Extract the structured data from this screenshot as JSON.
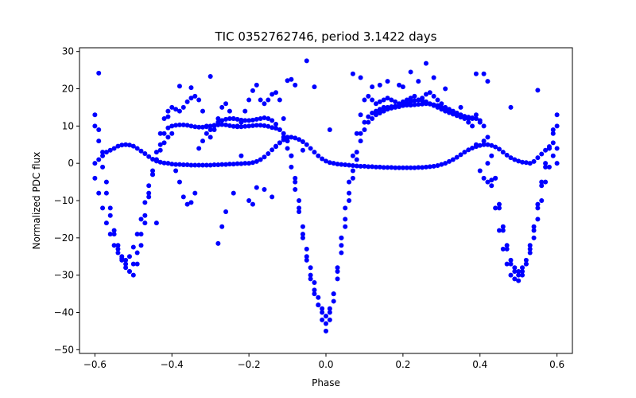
{
  "chart_data": {
    "type": "scatter",
    "title": "TIC 0352762746, period 3.1422 days",
    "xlabel": "Phase",
    "ylabel": "Normalized PDC flux",
    "xlim": [
      -0.64,
      0.64
    ],
    "ylim": [
      -51,
      31
    ],
    "xticks": [
      -0.6,
      -0.4,
      -0.2,
      0.0,
      0.2,
      0.4,
      0.6
    ],
    "xtick_labels": [
      "−0.6",
      "−0.4",
      "−0.2",
      "0.0",
      "0.2",
      "0.4",
      "0.6"
    ],
    "yticks": [
      -50,
      -40,
      -30,
      -20,
      -10,
      0,
      10,
      20,
      30
    ],
    "ytick_labels": [
      "−50",
      "−40",
      "−30",
      "−20",
      "−10",
      "0",
      "10",
      "20",
      "30"
    ],
    "grid": false,
    "legend": "none",
    "marker_color": "#0000ff",
    "series": [
      {
        "x": [
          -0.6,
          -0.59,
          -0.58,
          -0.57,
          -0.56,
          -0.55,
          -0.54,
          -0.53,
          -0.52,
          -0.51,
          -0.5,
          -0.49,
          -0.48,
          -0.47,
          -0.46,
          -0.45,
          -0.44,
          -0.43,
          -0.42,
          -0.41,
          -0.4,
          -0.39,
          -0.38,
          -0.37,
          -0.36,
          -0.35,
          -0.34,
          -0.33,
          -0.32,
          -0.31,
          -0.3,
          -0.29,
          -0.28,
          -0.27,
          -0.26,
          -0.25,
          -0.24,
          -0.23,
          -0.22,
          -0.21,
          -0.2,
          -0.19,
          -0.18,
          -0.17,
          -0.16,
          -0.15,
          -0.14,
          -0.13,
          -0.12,
          -0.11,
          -0.1,
          -0.09,
          -0.08,
          -0.07,
          -0.06,
          -0.05,
          -0.04,
          -0.03,
          -0.02,
          -0.01,
          0.0,
          0.01,
          0.02,
          0.03,
          0.04,
          0.05,
          0.06,
          0.07,
          0.08,
          0.09,
          0.1,
          0.11,
          0.12,
          0.13,
          0.14,
          0.15,
          0.16,
          0.17,
          0.18,
          0.19,
          0.2,
          0.21,
          0.22,
          0.23,
          0.24,
          0.25,
          0.26,
          0.27,
          0.28,
          0.29,
          0.3,
          0.31,
          0.32,
          0.33,
          0.34,
          0.35,
          0.36,
          0.37,
          0.38,
          0.39,
          0.4,
          0.41,
          0.42,
          0.43,
          0.44,
          0.45,
          0.46,
          0.47,
          0.48,
          0.49,
          0.5,
          0.51,
          0.52,
          0.53,
          0.54,
          0.55,
          0.56,
          0.57,
          0.58,
          0.59,
          0.6
        ],
        "y": [
          0.0,
          1.0,
          2.0,
          3.0,
          3.5,
          4.0,
          4.6,
          4.9,
          5.0,
          4.9,
          4.6,
          4.0,
          3.3,
          2.6,
          1.8,
          1.1,
          0.6,
          0.3,
          0.1,
          0.0,
          -0.2,
          -0.3,
          -0.3,
          -0.4,
          -0.4,
          -0.5,
          -0.5,
          -0.5,
          -0.5,
          -0.5,
          -0.5,
          -0.4,
          -0.4,
          -0.3,
          -0.3,
          -0.2,
          -0.2,
          -0.1,
          -0.1,
          0.0,
          0.0,
          0.2,
          0.5,
          1.0,
          1.7,
          2.6,
          3.6,
          4.6,
          5.5,
          6.3,
          6.8,
          7.0,
          6.8,
          6.4,
          5.8,
          5.0,
          4.0,
          3.0,
          2.0,
          1.2,
          0.6,
          0.2,
          0.0,
          -0.2,
          -0.3,
          -0.4,
          -0.5,
          -0.6,
          -0.7,
          -0.8,
          -0.8,
          -0.9,
          -0.9,
          -1.0,
          -1.0,
          -1.1,
          -1.1,
          -1.1,
          -1.2,
          -1.2,
          -1.2,
          -1.2,
          -1.2,
          -1.2,
          -1.1,
          -1.1,
          -1.0,
          -0.9,
          -0.8,
          -0.6,
          -0.3,
          0.0,
          0.5,
          1.0,
          1.6,
          2.3,
          3.0,
          3.6,
          4.1,
          4.5,
          4.8,
          5.0,
          5.0,
          4.8,
          4.4,
          3.8,
          3.0,
          2.2,
          1.5,
          1.0,
          0.6,
          0.3,
          0.2,
          0.0,
          0.5,
          1.5,
          2.5,
          3.5,
          4.5,
          5.5,
          0.0
        ]
      },
      {
        "x": [
          -0.6,
          -0.59,
          -0.58,
          -0.57,
          -0.56,
          -0.55,
          -0.54,
          -0.53,
          -0.52,
          -0.51,
          -0.5,
          -0.49,
          -0.48,
          -0.47,
          -0.46,
          -0.45,
          -0.44,
          -0.43,
          -0.42,
          -0.41,
          -0.4,
          -0.39,
          -0.38,
          -0.37,
          -0.36,
          -0.35,
          -0.34,
          -0.33,
          -0.32,
          -0.31,
          -0.3,
          -0.29,
          -0.28,
          -0.27,
          -0.26,
          -0.25,
          -0.24,
          -0.23,
          -0.22,
          -0.21,
          -0.2,
          -0.19,
          -0.18,
          -0.17,
          -0.16,
          -0.15,
          -0.14,
          -0.13,
          -0.12,
          -0.11,
          -0.1,
          -0.09,
          -0.08,
          -0.07,
          -0.06,
          -0.05,
          -0.04,
          -0.03,
          -0.02,
          -0.01,
          0.0,
          0.01,
          0.02,
          0.03,
          0.04,
          0.05,
          0.06,
          0.07,
          0.08,
          0.09,
          0.1,
          0.11,
          0.12,
          0.13,
          0.14,
          0.15,
          0.16,
          0.17,
          0.18,
          0.19,
          0.2,
          0.21,
          0.22,
          0.23,
          0.24,
          0.25,
          0.26,
          0.27,
          0.28,
          0.29,
          0.3,
          0.31,
          0.32,
          0.33,
          0.34,
          0.35,
          0.36,
          0.37,
          0.38,
          0.39,
          0.4,
          0.41,
          0.42,
          0.43,
          0.44,
          0.45,
          0.46,
          0.47,
          0.48,
          0.49,
          0.5,
          0.51,
          0.52,
          0.53,
          0.54,
          0.55,
          0.56,
          0.57,
          0.58,
          0.59,
          0.6
        ],
        "y": [
          10.0,
          6.0,
          -1.0,
          -8.0,
          -14.0,
          -19.0,
          -23.0,
          -26.0,
          -28.0,
          -29.0,
          -27.0,
          -24.0,
          -19.0,
          -14.0,
          -8.0,
          -3.0,
          1.0,
          5.0,
          8.0,
          9.5,
          10.0,
          10.2,
          10.3,
          10.3,
          10.2,
          10.0,
          9.8,
          9.7,
          9.7,
          9.8,
          10.0,
          10.2,
          10.3,
          10.4,
          10.3,
          10.1,
          9.9,
          9.8,
          9.8,
          9.9,
          10.0,
          10.1,
          10.2,
          10.2,
          10.1,
          9.9,
          9.6,
          9.4,
          9.0,
          8.0,
          6.0,
          2.0,
          -4.0,
          -10.0,
          -17.0,
          -23.0,
          -28.0,
          -32.0,
          -36.0,
          -39.0,
          -41.0,
          -39.0,
          -35.0,
          -29.0,
          -22.0,
          -15.0,
          -8.0,
          -2.0,
          3.0,
          8.0,
          11.0,
          12.5,
          13.5,
          14.0,
          14.5,
          15.0,
          15.0,
          15.2,
          15.3,
          15.4,
          15.5,
          15.6,
          15.6,
          15.7,
          15.8,
          15.9,
          16.0,
          15.9,
          15.7,
          15.5,
          15.0,
          14.5,
          14.0,
          13.5,
          13.0,
          12.8,
          12.6,
          12.4,
          12.2,
          12.0,
          11.5,
          10.0,
          7.0,
          2.0,
          -4.0,
          -11.0,
          -17.0,
          -22.0,
          -26.0,
          -28.0,
          -29.0,
          -28.0,
          -26.0,
          -22.0,
          -17.0,
          -11.0,
          -5.0,
          0.0,
          4.0,
          8.0,
          10.0
        ]
      },
      {
        "x": [
          -0.6,
          -0.59,
          -0.58,
          -0.57,
          -0.56,
          -0.55,
          -0.54,
          -0.53,
          -0.52,
          -0.51,
          -0.5,
          -0.49,
          -0.48,
          -0.47,
          -0.46,
          -0.45,
          -0.44,
          -0.43,
          -0.42,
          -0.41,
          -0.4,
          -0.39,
          -0.38,
          -0.37,
          -0.36,
          -0.35,
          -0.34,
          -0.33,
          -0.32,
          -0.31,
          -0.3,
          -0.29,
          -0.28,
          -0.27,
          -0.26,
          -0.25,
          -0.24,
          -0.23,
          -0.22,
          -0.21,
          -0.2,
          -0.19,
          -0.18,
          -0.17,
          -0.16,
          -0.15,
          -0.14,
          -0.13,
          -0.12,
          -0.11,
          -0.1,
          -0.09,
          -0.08,
          -0.07,
          -0.06,
          -0.05,
          -0.04,
          -0.03,
          -0.02,
          -0.01,
          0.0,
          0.01,
          0.02,
          0.03,
          0.04,
          0.05,
          0.06,
          0.07,
          0.08,
          0.09,
          0.1,
          0.11,
          0.12,
          0.13,
          0.14,
          0.15,
          0.16,
          0.17,
          0.18,
          0.19,
          0.2,
          0.21,
          0.22,
          0.23,
          0.24,
          0.25,
          0.26,
          0.27,
          0.28,
          0.29,
          0.3,
          0.31,
          0.32,
          0.33,
          0.34,
          0.35,
          0.36,
          0.37,
          0.38,
          0.39,
          0.4,
          0.41,
          0.42,
          0.43,
          0.44,
          0.45,
          0.46,
          0.47,
          0.48,
          0.49,
          0.5,
          0.51,
          0.52,
          0.53,
          0.54,
          0.55,
          0.56,
          0.57,
          0.58,
          0.59,
          0.6
        ],
        "y": [
          -4.0,
          -8.0,
          -12.0,
          -16.0,
          -19.0,
          -22.0,
          -24.0,
          -25.5,
          -26.0,
          -25.0,
          -22.5,
          -19.0,
          -15.0,
          -10.5,
          -6.0,
          -2.0,
          1.0,
          3.5,
          5.5,
          7.0,
          8.0,
          -2.0,
          -5.0,
          -9.0,
          -11.0,
          -10.5,
          -8.0,
          4.0,
          6.0,
          8.0,
          9.0,
          10.0,
          11.0,
          11.5,
          11.8,
          12.0,
          12.0,
          11.8,
          11.6,
          11.5,
          11.5,
          11.6,
          11.8,
          12.0,
          12.2,
          12.0,
          11.5,
          10.5,
          9.0,
          7.0,
          4.0,
          -1.0,
          -7.0,
          -13.0,
          -19.0,
          -25.0,
          -30.0,
          -34.0,
          -38.0,
          -42.0,
          -45.0,
          -42.0,
          -37.0,
          -31.0,
          -24.0,
          -17.0,
          -10.0,
          -4.0,
          1.0,
          6.0,
          9.0,
          11.0,
          12.0,
          13.0,
          13.5,
          14.0,
          14.5,
          14.8,
          15.0,
          15.2,
          15.5,
          16.0,
          16.5,
          16.8,
          17.0,
          16.8,
          16.5,
          16.0,
          15.5,
          15.0,
          14.5,
          14.0,
          13.6,
          13.2,
          12.8,
          12.4,
          12.0,
          11.0,
          10.0,
          5.0,
          -2.0,
          -4.0,
          -5.0,
          -4.5,
          -4.0,
          -12.0,
          -18.0,
          -23.0,
          -27.0,
          -29.0,
          -30.0,
          -29.0,
          -27.0,
          -24.0,
          -20.0,
          -15.0,
          -10.0,
          -5.0,
          -1.0,
          2.0,
          4.0
        ]
      },
      {
        "x": [
          -0.6,
          -0.59,
          -0.58,
          -0.57,
          -0.56,
          -0.55,
          -0.54,
          -0.53,
          -0.52,
          -0.51,
          -0.5,
          -0.49,
          -0.48,
          -0.47,
          -0.46,
          -0.45,
          -0.44,
          -0.43,
          -0.42,
          -0.41,
          -0.4,
          -0.39,
          -0.38,
          -0.37,
          -0.36,
          -0.35,
          -0.34,
          -0.33,
          -0.32,
          -0.31,
          -0.3,
          -0.29,
          -0.28,
          -0.27,
          -0.26,
          -0.25,
          -0.24,
          -0.23,
          -0.22,
          -0.21,
          -0.2,
          -0.19,
          -0.18,
          -0.17,
          -0.16,
          -0.15,
          -0.14,
          -0.13,
          -0.12,
          -0.11,
          -0.1,
          -0.09,
          -0.08,
          -0.07,
          -0.06,
          -0.05,
          -0.04,
          -0.03,
          -0.02,
          -0.01,
          0.0,
          0.01,
          0.02,
          0.03,
          0.04,
          0.05,
          0.06,
          0.07,
          0.08,
          0.09,
          0.1,
          0.11,
          0.12,
          0.13,
          0.14,
          0.15,
          0.16,
          0.17,
          0.18,
          0.19,
          0.2,
          0.21,
          0.22,
          0.23,
          0.24,
          0.25,
          0.26,
          0.27,
          0.28,
          0.29,
          0.3,
          0.31,
          0.32,
          0.33,
          0.34,
          0.35,
          0.36,
          0.37,
          0.38,
          0.39,
          0.4,
          0.41,
          0.42,
          0.43,
          0.44,
          0.45,
          0.46,
          0.47,
          0.48,
          0.49,
          0.5,
          0.51,
          0.52,
          0.53,
          0.54,
          0.55,
          0.56,
          0.57,
          0.58,
          0.59,
          0.6
        ],
        "y": [
          13.0,
          9.0,
          3.0,
          -5.0,
          -12.0,
          -18.0,
          -22.0,
          -25.0,
          -27.0,
          -29.0,
          -30.0,
          -27.0,
          -22.0,
          -16.0,
          -9.0,
          -3.0,
          3.0,
          8.0,
          12.0,
          14.0,
          15.0,
          14.5,
          14.0,
          15.0,
          16.5,
          17.5,
          18.0,
          17.0,
          14.0,
          10.0,
          7.0,
          9.0,
          12.0,
          15.0,
          16.0,
          14.0,
          12.0,
          10.0,
          11.0,
          14.0,
          17.0,
          19.5,
          21.0,
          17.0,
          16.0,
          17.0,
          18.5,
          19.0,
          17.0,
          12.0,
          7.0,
          2.0,
          -5.0,
          -12.0,
          -20.0,
          -26.0,
          -31.0,
          -35.0,
          -38.0,
          -40.0,
          -43.0,
          -40.0,
          -35.0,
          -28.0,
          -20.0,
          -12.0,
          -5.0,
          2.0,
          8.0,
          13.0,
          17.0,
          18.0,
          17.0,
          16.0,
          16.5,
          17.0,
          17.5,
          17.0,
          16.5,
          16.0,
          16.5,
          17.0,
          17.5,
          18.0,
          17.0,
          17.5,
          18.5,
          19.0,
          18.0,
          17.0,
          16.0,
          15.0,
          14.5,
          14.0,
          13.5,
          13.0,
          12.5,
          12.0,
          12.0,
          13.0,
          11.0,
          6.0,
          0.0,
          -6.0,
          -12.0,
          -18.0,
          -23.0,
          -27.0,
          -30.0,
          -31.0,
          -31.5,
          -30.0,
          -27.0,
          -23.0,
          -18.0,
          -12.0,
          -6.0,
          -1.0,
          4.0,
          9.0,
          13.0
        ]
      },
      {
        "x": [
          -0.59,
          -0.44,
          -0.41,
          -0.38,
          -0.35,
          -0.3,
          -0.28,
          -0.27,
          -0.26,
          -0.24,
          -0.22,
          -0.2,
          -0.19,
          -0.18,
          -0.16,
          -0.14,
          -0.13,
          -0.12,
          -0.1,
          -0.09,
          -0.08,
          -0.06,
          -0.05,
          -0.03,
          0.01,
          0.04,
          0.07,
          0.09,
          0.12,
          0.14,
          0.16,
          0.19,
          0.2,
          0.22,
          0.24,
          0.26,
          0.28,
          0.31,
          0.35,
          0.39,
          0.41,
          0.42,
          0.48,
          0.55
        ],
        "y": [
          24.2,
          -16.0,
          12.5,
          20.7,
          20.3,
          23.3,
          -21.5,
          -17.0,
          -13.0,
          -8.0,
          2.0,
          -10.0,
          -11.0,
          -6.5,
          -7.0,
          -9.0,
          4.5,
          5.5,
          22.2,
          22.5,
          21.0,
          3.5,
          27.5,
          20.5,
          9.0,
          -20.0,
          24.0,
          23.0,
          20.5,
          21.0,
          22.0,
          21.0,
          20.5,
          24.5,
          22.0,
          26.8,
          23.0,
          20.0,
          15.0,
          24.0,
          24.0,
          22.0,
          15.0,
          19.6
        ]
      }
    ]
  }
}
